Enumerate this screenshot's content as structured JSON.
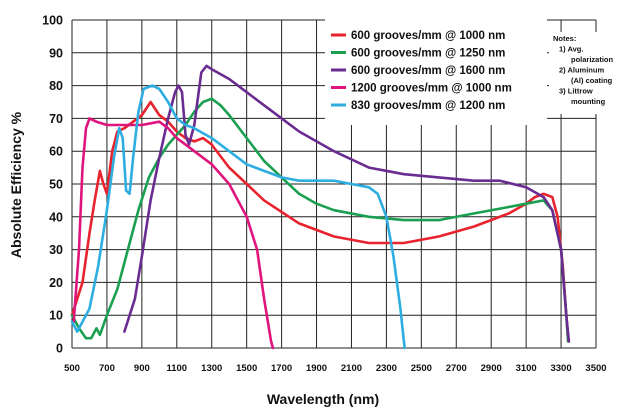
{
  "chart_data": {
    "type": "line",
    "xlabel": "Wavelength (nm)",
    "ylabel": "Absolute Efficiency %",
    "xlim": [
      500,
      3500
    ],
    "ylim": [
      0,
      100
    ],
    "x_ticks": [
      500,
      700,
      900,
      1100,
      1300,
      1500,
      1700,
      1900,
      2100,
      2300,
      2500,
      2700,
      2900,
      3100,
      3300,
      3500
    ],
    "y_ticks": [
      0,
      10,
      20,
      30,
      40,
      50,
      60,
      70,
      80,
      90,
      100
    ],
    "grid": true,
    "legend_position": "top-right",
    "series": [
      {
        "name": "600 grooves/mm  @ 1000 nm",
        "color": "#e8232e",
        "points": [
          [
            500,
            10
          ],
          [
            560,
            20
          ],
          [
            600,
            35
          ],
          [
            630,
            45
          ],
          [
            660,
            54
          ],
          [
            680,
            50
          ],
          [
            700,
            47
          ],
          [
            730,
            60
          ],
          [
            760,
            66
          ],
          [
            800,
            67
          ],
          [
            850,
            69
          ],
          [
            900,
            71
          ],
          [
            950,
            75
          ],
          [
            1000,
            71
          ],
          [
            1050,
            69
          ],
          [
            1100,
            66
          ],
          [
            1150,
            64
          ],
          [
            1200,
            63
          ],
          [
            1250,
            64
          ],
          [
            1300,
            62
          ],
          [
            1400,
            55
          ],
          [
            1500,
            50
          ],
          [
            1600,
            45
          ],
          [
            1800,
            38
          ],
          [
            2000,
            34
          ],
          [
            2200,
            32
          ],
          [
            2400,
            32
          ],
          [
            2600,
            34
          ],
          [
            2800,
            37
          ],
          [
            3000,
            41
          ],
          [
            3100,
            44
          ],
          [
            3150,
            46
          ],
          [
            3200,
            47
          ],
          [
            3250,
            46
          ],
          [
            3280,
            40
          ],
          [
            3310,
            25
          ],
          [
            3330,
            10
          ],
          [
            3340,
            2
          ]
        ]
      },
      {
        "name": "600 grooves/mm  @ 1250 nm",
        "color": "#1aa050",
        "points": [
          [
            500,
            10
          ],
          [
            540,
            6
          ],
          [
            580,
            3
          ],
          [
            610,
            3
          ],
          [
            640,
            6
          ],
          [
            660,
            4
          ],
          [
            700,
            10
          ],
          [
            760,
            18
          ],
          [
            820,
            30
          ],
          [
            880,
            42
          ],
          [
            940,
            52
          ],
          [
            1000,
            58
          ],
          [
            1050,
            62
          ],
          [
            1100,
            65
          ],
          [
            1150,
            68
          ],
          [
            1200,
            72
          ],
          [
            1250,
            75
          ],
          [
            1300,
            76
          ],
          [
            1350,
            74
          ],
          [
            1400,
            71
          ],
          [
            1500,
            64
          ],
          [
            1600,
            57
          ],
          [
            1700,
            52
          ],
          [
            1800,
            47
          ],
          [
            1900,
            44
          ],
          [
            2000,
            42
          ],
          [
            2200,
            40
          ],
          [
            2400,
            39
          ],
          [
            2600,
            39
          ],
          [
            2800,
            41
          ],
          [
            3000,
            43
          ],
          [
            3100,
            44
          ],
          [
            3200,
            45
          ],
          [
            3250,
            42
          ],
          [
            3300,
            30
          ],
          [
            3330,
            10
          ],
          [
            3340,
            2
          ]
        ]
      },
      {
        "name": "600 grooves/mm  @ 1600 nm",
        "color": "#6a2c91",
        "points": [
          [
            800,
            5
          ],
          [
            860,
            15
          ],
          [
            900,
            28
          ],
          [
            950,
            45
          ],
          [
            1000,
            58
          ],
          [
            1050,
            70
          ],
          [
            1090,
            78
          ],
          [
            1110,
            80
          ],
          [
            1130,
            78
          ],
          [
            1150,
            65
          ],
          [
            1170,
            62
          ],
          [
            1200,
            68
          ],
          [
            1220,
            76
          ],
          [
            1240,
            84
          ],
          [
            1270,
            86
          ],
          [
            1300,
            85
          ],
          [
            1400,
            82
          ],
          [
            1500,
            78
          ],
          [
            1600,
            74
          ],
          [
            1800,
            66
          ],
          [
            2000,
            60
          ],
          [
            2200,
            55
          ],
          [
            2400,
            53
          ],
          [
            2600,
            52
          ],
          [
            2800,
            51
          ],
          [
            2950,
            51
          ],
          [
            3100,
            49
          ],
          [
            3200,
            46
          ],
          [
            3250,
            42
          ],
          [
            3300,
            30
          ],
          [
            3330,
            10
          ],
          [
            3345,
            2
          ]
        ]
      },
      {
        "name": "1200 grooves/mm  @ 1000 nm",
        "color": "#e0147d",
        "points": [
          [
            510,
            8
          ],
          [
            540,
            30
          ],
          [
            560,
            55
          ],
          [
            580,
            67
          ],
          [
            600,
            70
          ],
          [
            640,
            69
          ],
          [
            700,
            68
          ],
          [
            800,
            68
          ],
          [
            900,
            68
          ],
          [
            1000,
            69
          ],
          [
            1050,
            67
          ],
          [
            1100,
            64
          ],
          [
            1150,
            62
          ],
          [
            1200,
            60
          ],
          [
            1300,
            56
          ],
          [
            1400,
            50
          ],
          [
            1500,
            40
          ],
          [
            1560,
            30
          ],
          [
            1600,
            15
          ],
          [
            1640,
            2
          ],
          [
            1650,
            0
          ]
        ]
      },
      {
        "name": "830 grooves/mm  @ 1200 nm",
        "color": "#2eaee0",
        "points": [
          [
            500,
            8
          ],
          [
            530,
            5
          ],
          [
            560,
            8
          ],
          [
            600,
            12
          ],
          [
            650,
            25
          ],
          [
            700,
            42
          ],
          [
            740,
            58
          ],
          [
            770,
            67
          ],
          [
            790,
            64
          ],
          [
            810,
            48
          ],
          [
            830,
            47
          ],
          [
            850,
            58
          ],
          [
            880,
            72
          ],
          [
            910,
            79
          ],
          [
            960,
            80
          ],
          [
            1000,
            79
          ],
          [
            1050,
            75
          ],
          [
            1100,
            70
          ],
          [
            1150,
            68
          ],
          [
            1200,
            67
          ],
          [
            1300,
            64
          ],
          [
            1400,
            60
          ],
          [
            1500,
            56
          ],
          [
            1600,
            54
          ],
          [
            1700,
            52
          ],
          [
            1800,
            51
          ],
          [
            1900,
            51
          ],
          [
            2000,
            51
          ],
          [
            2100,
            50
          ],
          [
            2200,
            49
          ],
          [
            2250,
            47
          ],
          [
            2300,
            40
          ],
          [
            2340,
            28
          ],
          [
            2380,
            12
          ],
          [
            2400,
            2
          ],
          [
            2405,
            0
          ]
        ]
      }
    ],
    "notes": [
      "Notes:",
      "1) Avg.",
      "polarization",
      "2) Aluminum",
      "(Al) coating",
      "3) Littrow",
      "mounting"
    ]
  }
}
